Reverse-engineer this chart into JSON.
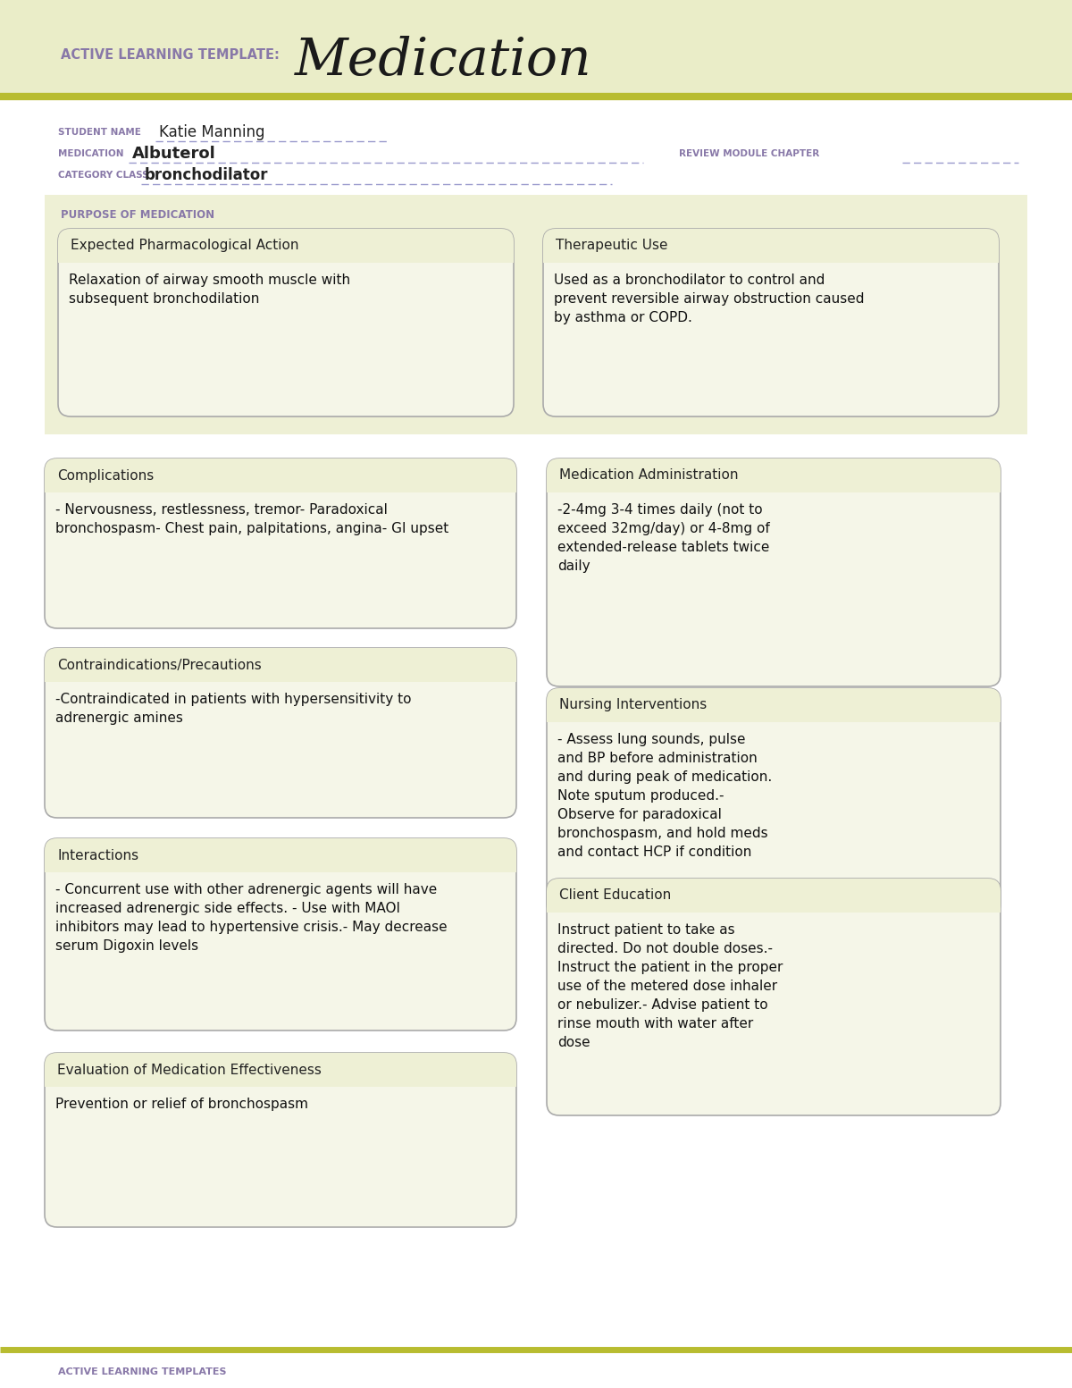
{
  "bg_header": "#eaedc8",
  "bg_white": "#ffffff",
  "bg_section": "#eef0d5",
  "bg_box": "#f5f6e8",
  "border_color": "#aaaaaa",
  "olive_line": "#b8bc30",
  "purple_label": "#8878a8",
  "dark_text": "#222222",
  "title_label": "ACTIVE LEARNING TEMPLATE:",
  "title_main": "Medication",
  "student_name_label": "STUDENT NAME",
  "student_name": "Katie Manning",
  "medication_label": "MEDICATION",
  "medication": "Albuterol",
  "review_label": "REVIEW MODULE CHAPTER",
  "category_label": "CATEGORY CLASS",
  "category": "bronchodilator",
  "purpose_label": "PURPOSE OF MEDICATION",
  "box1_title": "Expected Pharmacological Action",
  "box1_content": "Relaxation of airway smooth muscle with\nsubsequent bronchodilation",
  "box2_title": "Therapeutic Use",
  "box2_content": "Used as a bronchodilator to control and\nprevent reversible airway obstruction caused\nby asthma or COPD.",
  "box3_title": "Complications",
  "box3_content": "- Nervousness, restlessness, tremor- Paradoxical\nbronchospasm- Chest pain, palpitations, angina- GI upset",
  "box4_title": "Medication Administration",
  "box4_content": "-2-4mg 3-4 times daily (not to\nexceed 32mg/day) or 4-8mg of\nextended-release tablets twice\ndaily",
  "box5_title": "Contraindications/Precautions",
  "box5_content": "-Contraindicated in patients with hypersensitivity to\nadrenergic amines",
  "box6_title": "Nursing Interventions",
  "box6_content": "- Assess lung sounds, pulse\nand BP before administration\nand during peak of medication.\nNote sputum produced.-\nObserve for paradoxical\nbronchospasm, and hold meds\nand contact HCP if condition",
  "box7_title": "Interactions",
  "box7_content": "- Concurrent use with other adrenergic agents will have\nincreased adrenergic side effects. - Use with MAOI\ninhibitors may lead to hypertensive crisis.- May decrease\nserum Digoxin levels",
  "box8_title": "Client Education",
  "box8_content": "Instruct patient to take as\ndirected. Do not double doses.-\nInstruct the patient in the proper\nuse of the metered dose inhaler\nor nebulizer.- Advise patient to\nrinse mouth with water after\ndose",
  "box9_title": "Evaluation of Medication Effectiveness",
  "box9_content": "Prevention or relief of bronchospasm",
  "footer_text": "ACTIVE LEARNING TEMPLATES"
}
